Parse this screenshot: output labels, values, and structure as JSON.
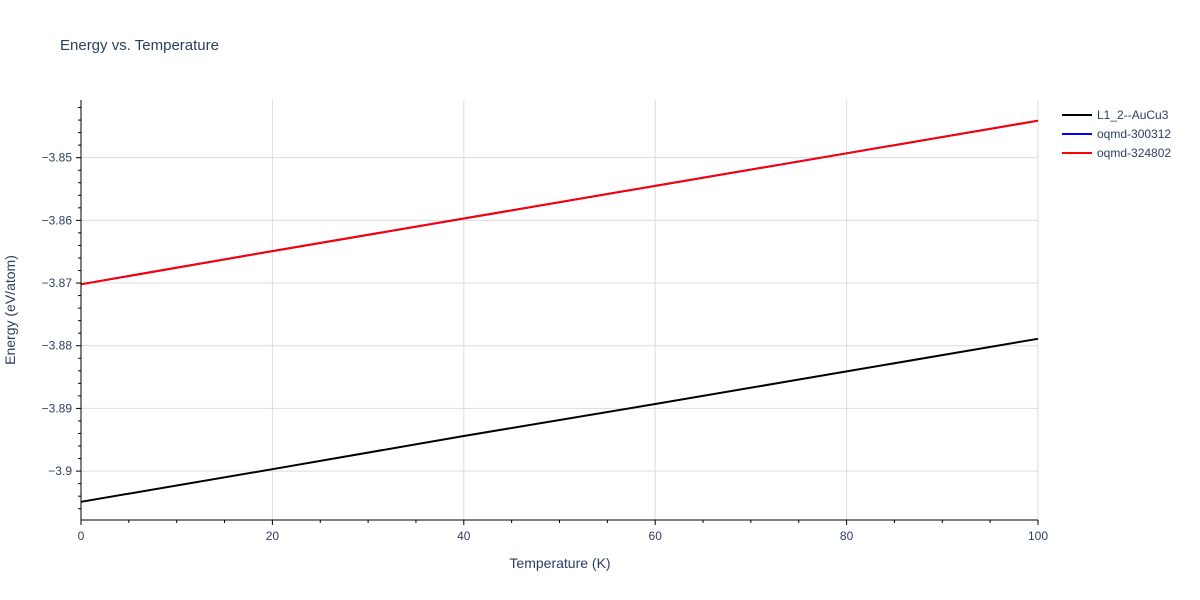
{
  "chart_data": {
    "type": "line",
    "title": "Energy vs. Temperature",
    "xlabel": "Temperature (K)",
    "ylabel": "Energy (eV/atom)",
    "xlim": [
      0,
      100
    ],
    "ylim": [
      -3.9078,
      -3.8408
    ],
    "x_ticks": [
      0,
      20,
      40,
      60,
      80,
      100
    ],
    "x_tick_labels": [
      "0",
      "20",
      "40",
      "60",
      "80",
      "100"
    ],
    "y_ticks": [
      -3.9,
      -3.89,
      -3.88,
      -3.87,
      -3.86,
      -3.85
    ],
    "y_tick_labels": [
      "−3.9",
      "−3.89",
      "−3.88",
      "−3.87",
      "−3.86",
      "−3.85"
    ],
    "grid": true,
    "legend_position": "top-right",
    "series": [
      {
        "name": "L1_2--AuCu3",
        "color": "#000000",
        "x": [
          0,
          20,
          40,
          60,
          80,
          100
        ],
        "y": [
          -3.9049,
          -3.8997,
          -3.8944,
          -3.8893,
          -3.8841,
          -3.8789
        ]
      },
      {
        "name": "oqmd-300312",
        "color": "#0000ff",
        "x": [
          0,
          20,
          40,
          60,
          80,
          100
        ],
        "y": [
          -3.8702,
          -3.8649,
          -3.8597,
          -3.8545,
          -3.8493,
          -3.8441
        ]
      },
      {
        "name": "oqmd-324802",
        "color": "#ff0000",
        "x": [
          0,
          20,
          40,
          60,
          80,
          100
        ],
        "y": [
          -3.8702,
          -3.8649,
          -3.8597,
          -3.8545,
          -3.8493,
          -3.8441
        ]
      }
    ]
  }
}
